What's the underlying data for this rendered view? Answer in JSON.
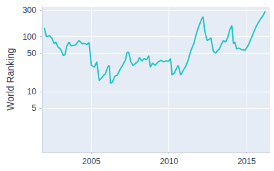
{
  "chart_data": {
    "type": "line",
    "y_label": "World Ranking",
    "x": [
      2001.97,
      2002.1,
      2002.3,
      2002.45,
      2002.6,
      2002.7,
      2002.85,
      2003.0,
      2003.2,
      2003.3,
      2003.4,
      2003.55,
      2003.7,
      2003.9,
      2004.0,
      2004.2,
      2004.4,
      2004.6,
      2004.7,
      2004.85,
      2005.0,
      2005.2,
      2005.35,
      2005.5,
      2005.6,
      2005.8,
      2005.9,
      2006.05,
      2006.15,
      2006.23,
      2006.36,
      2006.5,
      2006.67,
      2006.84,
      2007.0,
      2007.2,
      2007.3,
      2007.4,
      2007.54,
      2007.68,
      2007.8,
      2007.98,
      2008.1,
      2008.25,
      2008.4,
      2008.55,
      2008.7,
      2008.8,
      2008.95,
      2009.1,
      2009.3,
      2009.5,
      2009.65,
      2009.8,
      2010.0,
      2010.1,
      2010.2,
      2010.35,
      2010.5,
      2010.6,
      2010.75,
      2010.9,
      2011.05,
      2011.2,
      2011.4,
      2011.6,
      2011.75,
      2011.9,
      2012.1,
      2012.2,
      2012.3,
      2012.45,
      2012.6,
      2012.7,
      2012.85,
      2013.0,
      2013.1,
      2013.25,
      2013.4,
      2013.5,
      2013.65,
      2013.8,
      2013.9,
      2014.05,
      2014.15,
      2014.25,
      2014.35,
      2014.5,
      2014.7,
      2014.9,
      2015.05,
      2015.2,
      2015.4,
      2015.6,
      2015.75,
      2015.9,
      2016.05,
      2016.2
    ],
    "values": [
      145,
      100,
      105,
      95,
      75,
      80,
      65,
      60,
      45,
      47,
      65,
      80,
      68,
      70,
      72,
      85,
      75,
      75,
      72,
      78,
      30,
      28,
      35,
      16,
      17,
      20,
      21,
      28,
      30,
      14,
      15,
      19,
      20,
      25,
      30,
      38,
      52,
      52,
      35,
      30,
      32,
      35,
      42,
      36,
      40,
      38,
      45,
      28,
      33,
      30,
      35,
      37,
      35,
      36,
      36,
      40,
      20,
      22,
      27,
      30,
      20,
      24,
      28,
      35,
      55,
      75,
      110,
      150,
      210,
      230,
      130,
      85,
      90,
      95,
      55,
      50,
      55,
      60,
      75,
      85,
      80,
      100,
      130,
      160,
      75,
      80,
      60,
      62,
      58,
      57,
      65,
      80,
      110,
      150,
      180,
      210,
      240,
      290
    ],
    "color": "#22c7c7",
    "xlim": [
      2001.8,
      2016.5
    ],
    "xticks": [
      2005,
      2010,
      2015
    ],
    "ylim": [
      0.8,
      350
    ],
    "yticks": [
      5,
      10,
      50,
      100,
      300
    ],
    "log": "y",
    "grid": true
  }
}
